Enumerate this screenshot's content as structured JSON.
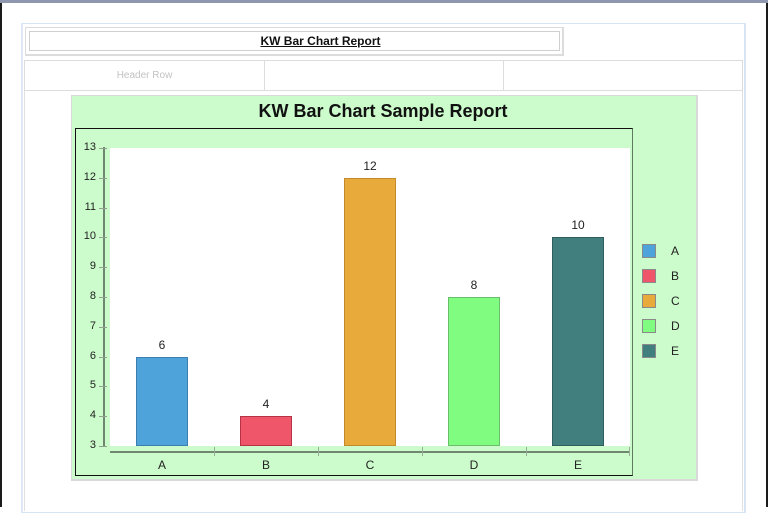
{
  "report": {
    "title": "KW Bar Chart Report",
    "header_row": [
      "Header Row",
      "",
      ""
    ]
  },
  "chart_data": {
    "type": "bar",
    "title": "KW Bar Chart Sample Report",
    "categories": [
      "A",
      "B",
      "C",
      "D",
      "E"
    ],
    "values": [
      6,
      4,
      12,
      8,
      10
    ],
    "colors": [
      "#4fa3db",
      "#f0566a",
      "#e8aa3a",
      "#80fc80",
      "#417e7e"
    ],
    "border_colors": [
      "#3a7fb0",
      "#b53345",
      "#c28a2a",
      "#6abd6a",
      "#2f5e5e"
    ],
    "xlabel": "",
    "ylabel": "",
    "ylim": [
      3,
      13
    ],
    "yticks": [
      3,
      4,
      5,
      6,
      7,
      8,
      9,
      10,
      11,
      12,
      13
    ],
    "data_labels": [
      "6",
      "4",
      "12",
      "8",
      "10"
    ],
    "legend": {
      "position": "right",
      "entries": [
        "A",
        "B",
        "C",
        "D",
        "E"
      ]
    },
    "grid": false,
    "background": "#ccfccc"
  }
}
